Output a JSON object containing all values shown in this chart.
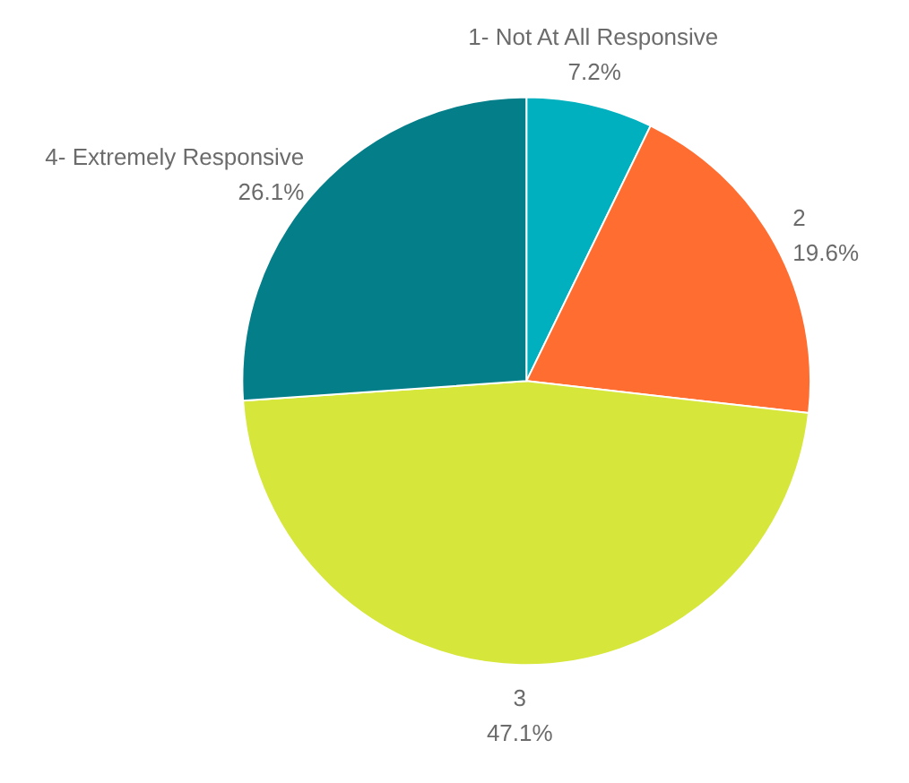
{
  "chart_data": {
    "type": "pie",
    "categories": [
      "1- Not At All Responsive",
      "2",
      "3",
      "4- Extremely Responsive"
    ],
    "values": [
      7.2,
      19.6,
      47.1,
      26.1
    ],
    "value_labels": [
      "7.2%",
      "19.6%",
      "47.1%",
      "26.1%"
    ],
    "colors": [
      "#00b0bf",
      "#ff6d31",
      "#d6e63a",
      "#047f8a"
    ],
    "legend": false
  }
}
